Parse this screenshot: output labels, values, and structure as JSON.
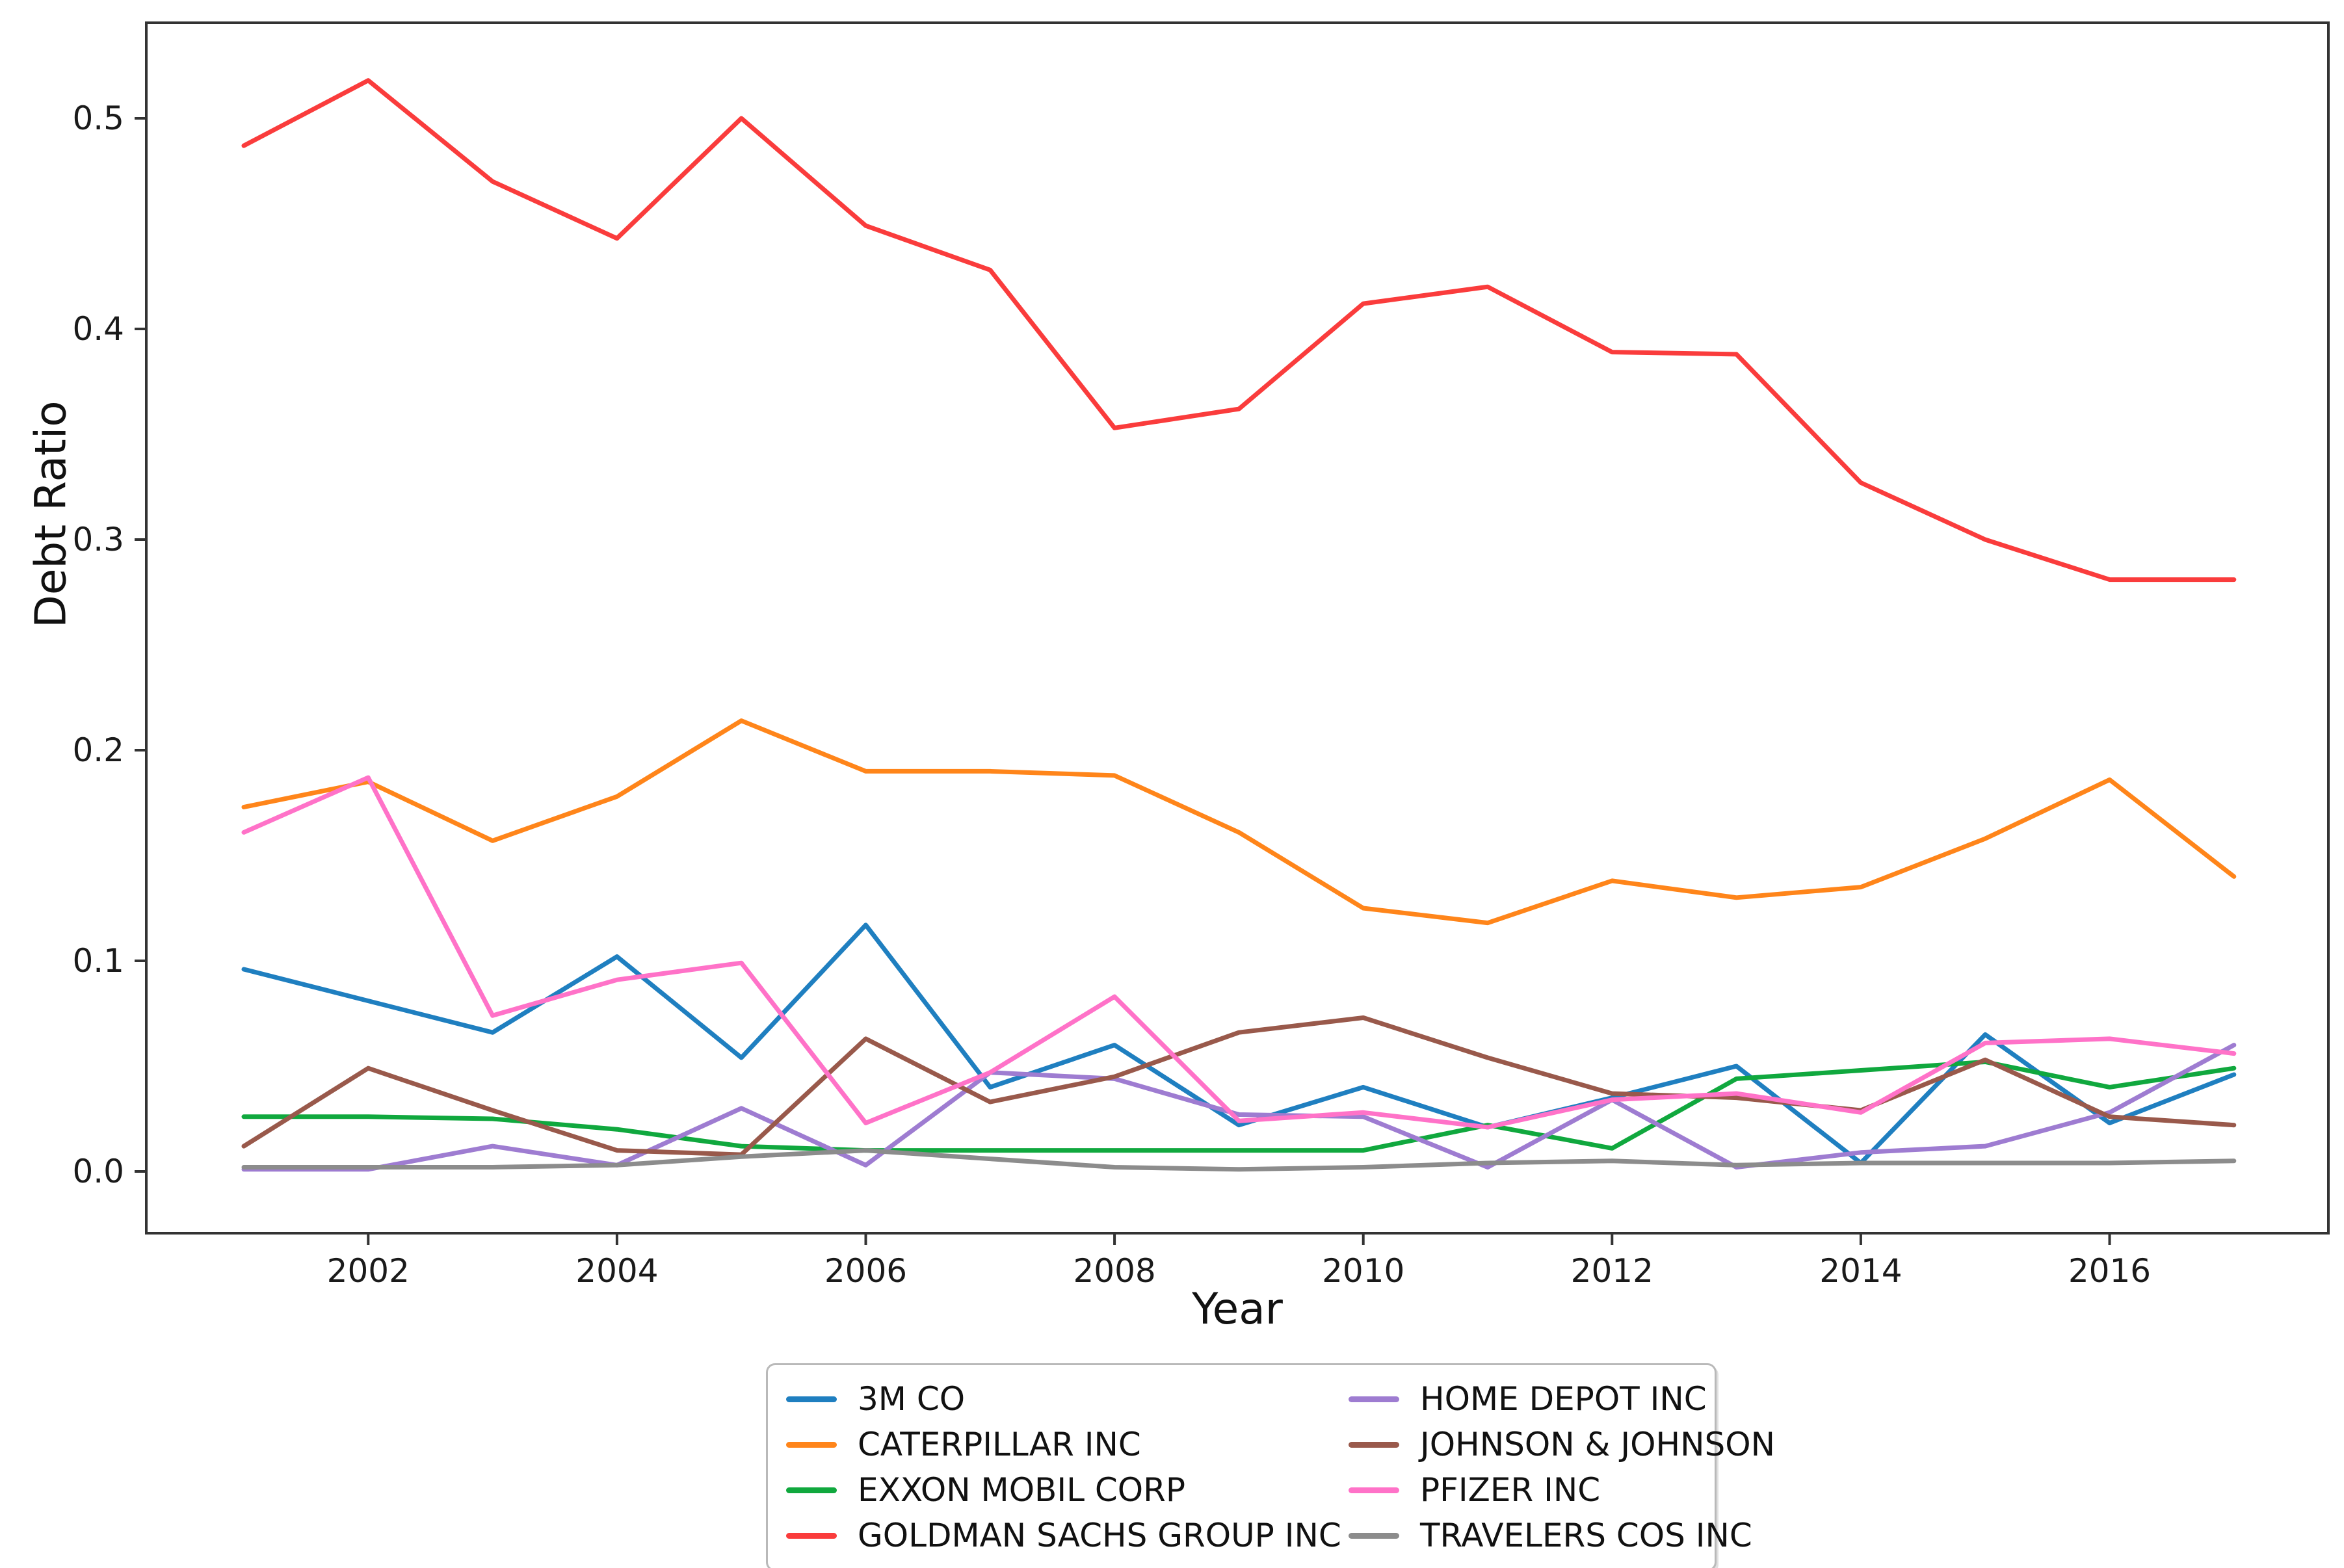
{
  "chart_data": {
    "type": "line",
    "title": "",
    "xlabel": "Year",
    "ylabel": "Debt Ratio",
    "grid": false,
    "legend_position": "below plot, centered, 2 columns",
    "x": [
      2001,
      2002,
      2003,
      2004,
      2005,
      2006,
      2007,
      2008,
      2009,
      2010,
      2011,
      2012,
      2013,
      2014,
      2015,
      2016,
      2017
    ],
    "x_ticks": [
      2002,
      2004,
      2006,
      2008,
      2010,
      2012,
      2014,
      2016
    ],
    "y_ticks": [
      0.0,
      0.1,
      0.2,
      0.3,
      0.4,
      0.5
    ],
    "xlim": [
      2000.2,
      2017.8
    ],
    "ylim": [
      -0.029,
      0.545
    ],
    "series": [
      {
        "name": "3M CO",
        "color": "#1f7fc0",
        "values": [
          0.096,
          0.081,
          0.066,
          0.102,
          0.054,
          0.117,
          0.04,
          0.06,
          0.022,
          0.04,
          0.021,
          0.035,
          0.05,
          0.004,
          0.065,
          0.023,
          0.046
        ]
      },
      {
        "name": "CATERPILLAR INC",
        "color": "#ff851a",
        "values": [
          0.173,
          0.185,
          0.157,
          0.178,
          0.214,
          0.19,
          0.19,
          0.188,
          0.161,
          0.125,
          0.118,
          0.138,
          0.13,
          0.135,
          0.158,
          0.186,
          0.14
        ]
      },
      {
        "name": "EXXON MOBIL CORP",
        "color": "#10a83e",
        "values": [
          0.026,
          0.026,
          0.025,
          0.02,
          0.012,
          0.01,
          0.01,
          0.01,
          0.01,
          0.01,
          0.022,
          0.011,
          0.044,
          0.048,
          0.052,
          0.04,
          0.049
        ]
      },
      {
        "name": "GOLDMAN SACHS GROUP INC",
        "color": "#fa3c3c",
        "values": [
          0.487,
          0.518,
          0.47,
          0.443,
          0.5,
          0.449,
          0.428,
          0.353,
          0.362,
          0.412,
          0.42,
          0.389,
          0.388,
          0.327,
          0.3,
          0.281,
          0.281
        ]
      },
      {
        "name": "HOME DEPOT INC",
        "color": "#9e7cd1",
        "values": [
          0.001,
          0.001,
          0.012,
          0.003,
          0.03,
          0.003,
          0.047,
          0.044,
          0.027,
          0.026,
          0.002,
          0.034,
          0.002,
          0.009,
          0.012,
          0.028,
          0.06
        ]
      },
      {
        "name": "JOHNSON & JOHNSON",
        "color": "#99594b",
        "values": [
          0.012,
          0.049,
          0.029,
          0.01,
          0.008,
          0.063,
          0.033,
          0.045,
          0.066,
          0.073,
          0.054,
          0.037,
          0.035,
          0.029,
          0.053,
          0.026,
          0.022
        ]
      },
      {
        "name": "PFIZER INC",
        "color": "#ff72c8",
        "values": [
          0.161,
          0.187,
          0.074,
          0.091,
          0.099,
          0.023,
          0.047,
          0.083,
          0.024,
          0.028,
          0.021,
          0.034,
          0.037,
          0.028,
          0.061,
          0.063,
          0.056
        ]
      },
      {
        "name": "TRAVELERS COS INC",
        "color": "#8c8c8c",
        "values": [
          0.002,
          0.002,
          0.002,
          0.003,
          0.007,
          0.01,
          0.006,
          0.002,
          0.001,
          0.002,
          0.004,
          0.005,
          0.003,
          0.004,
          0.004,
          0.004,
          0.005
        ]
      }
    ],
    "style": {
      "background": "#ffffff",
      "spine_color": "#333333",
      "tick_color": "#333333",
      "line_width": 7
    }
  }
}
